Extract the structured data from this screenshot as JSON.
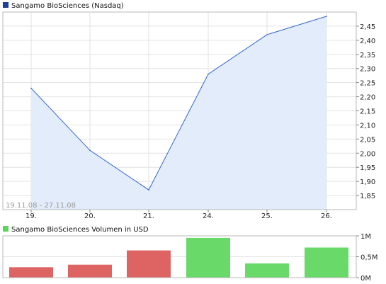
{
  "price_chart": {
    "legend_label": "Sangamo BioSciences (Nasdaq)",
    "legend_color": "#1f3f99",
    "date_range": "19.11.08 - 27.11.08",
    "line_color": "#3366cc",
    "fill_color": "#e3ecfb"
  },
  "volume_chart": {
    "legend_label": "Sangamo BioSciences Volumen in USD",
    "legend_color": "#59d55b",
    "down_color": "#de6464",
    "up_color": "#69d96a"
  },
  "chart_data": [
    {
      "type": "area",
      "categories": [
        "19.",
        "20.",
        "21.",
        "24.",
        "25.",
        "26."
      ],
      "values": [
        2.23,
        2.01,
        1.87,
        2.28,
        2.42,
        2.485
      ],
      "ylim": [
        1.8,
        2.5
      ],
      "yticks": [
        1.85,
        1.9,
        1.95,
        2.0,
        2.05,
        2.1,
        2.15,
        2.2,
        2.25,
        2.3,
        2.35,
        2.4,
        2.45
      ],
      "ytick_labels": [
        "1,85",
        "1,90",
        "1,95",
        "2,00",
        "2,05",
        "2,10",
        "2,15",
        "2,20",
        "2,25",
        "2,30",
        "2,35",
        "2,40",
        "2,45"
      ],
      "grid": true,
      "legend": "top-left"
    },
    {
      "type": "bar",
      "categories": [
        "19.",
        "20.",
        "21.",
        "24.",
        "25.",
        "26."
      ],
      "values": [
        250000,
        310000,
        650000,
        950000,
        340000,
        720000
      ],
      "direction": [
        "down",
        "down",
        "down",
        "up",
        "up",
        "up"
      ],
      "ylim": [
        0,
        1000000
      ],
      "yticks": [
        0,
        500000,
        1000000
      ],
      "ytick_labels": [
        "0M",
        "0,5M",
        "1M"
      ],
      "grid": true,
      "legend": "top-left"
    }
  ]
}
